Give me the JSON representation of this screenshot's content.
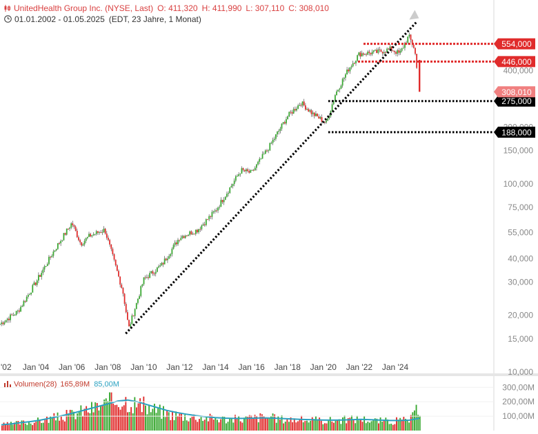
{
  "header": {
    "title": "UnitedHealth Group Inc. (NYSE, Last)",
    "open": "O: 411,320",
    "high": "H: 411,990",
    "low": "L: 307,110",
    "close": "C: 308,010",
    "range": "01.01.2002 - 01.05.2025",
    "period": "(EDT, 23 Jahre, 1 Monat)"
  },
  "volume_header": {
    "name": "Volumen(28)",
    "value": "165,89M",
    "ma": "85,00M"
  },
  "colors": {
    "up": "#3aa832",
    "down": "#e02b2b",
    "red_line": "#e02b2b",
    "black_line": "#000000",
    "vol_ma": "#2aa1c0",
    "last_tag": "#f08080"
  },
  "chart_data": [
    {
      "type": "line",
      "scale": "log",
      "ylim": [
        10,
        800
      ],
      "y_ticks": [
        "10,000",
        "15,000",
        "20,000",
        "30,000",
        "40,000",
        "55,000",
        "75,000",
        "100,000",
        "150,000",
        "200,000",
        "275,000",
        "400,000"
      ],
      "x_ticks": [
        "'02",
        "Jan '04",
        "Jan '06",
        "Jan '08",
        "Jan '10",
        "Jan '12",
        "Jan '14",
        "Jan '16",
        "Jan '18",
        "Jan '20",
        "Jan '22",
        "Jan '24"
      ],
      "x": [
        "2002-01",
        "2003-01",
        "2004-01",
        "2005-01",
        "2006-01",
        "2006-07",
        "2007-01",
        "2007-11",
        "2008-11",
        "2009-03",
        "2010-01",
        "2011-01",
        "2012-01",
        "2013-01",
        "2014-01",
        "2015-06",
        "2016-01",
        "2017-01",
        "2018-01",
        "2018-10",
        "2019-06",
        "2020-03",
        "2020-09",
        "2021-06",
        "2022-01",
        "2022-06",
        "2023-01",
        "2023-10",
        "2024-04",
        "2024-10",
        "2025-02",
        "2025-05"
      ],
      "series": [
        {
          "values": [
            18,
            21,
            30,
            44,
            62,
            48,
            53,
            57,
            27,
            17,
            31,
            37,
            52,
            57,
            72,
            118,
            114,
            158,
            228,
            270,
            235,
            210,
            300,
            410,
            490,
            495,
            500,
            520,
            490,
            610,
            520,
            308
          ]
        }
      ],
      "levels": [
        {
          "value": 554,
          "label": "554,000",
          "style": "red"
        },
        {
          "value": 446,
          "label": "446,000",
          "style": "red"
        },
        {
          "value": 275,
          "label": "275,000",
          "style": "black"
        },
        {
          "value": 188,
          "label": "188,000",
          "style": "black"
        }
      ],
      "last_value": {
        "value": 308.01,
        "label": "308,010"
      },
      "trendline": {
        "from": {
          "x": "2009-01",
          "y": 16
        },
        "to": {
          "x": "2025-03",
          "y": 720
        }
      }
    },
    {
      "type": "bar",
      "series_name": "Volumen(28)",
      "y_ticks": [
        "100,00M",
        "200,00M",
        "300,00M"
      ],
      "ylim": [
        0,
        330
      ],
      "values": [
        40,
        45,
        55,
        60,
        70,
        85,
        95,
        110,
        130,
        150,
        170,
        190,
        220,
        210,
        180,
        160,
        140,
        120,
        110,
        100,
        95,
        90,
        85,
        80,
        80,
        85,
        90,
        95,
        85,
        80,
        78,
        75,
        72,
        70,
        72,
        75,
        80,
        85,
        70,
        68,
        65,
        70,
        75,
        165
      ],
      "ma": [
        40,
        46,
        55,
        62,
        72,
        86,
        100,
        115,
        132,
        150,
        168,
        186,
        205,
        212,
        200,
        180,
        160,
        140,
        126,
        114,
        104,
        96,
        90,
        86,
        84,
        84,
        86,
        88,
        86,
        83,
        80,
        77,
        75,
        73,
        72,
        73,
        75,
        78,
        75,
        72,
        70,
        70,
        72,
        85
      ]
    }
  ]
}
